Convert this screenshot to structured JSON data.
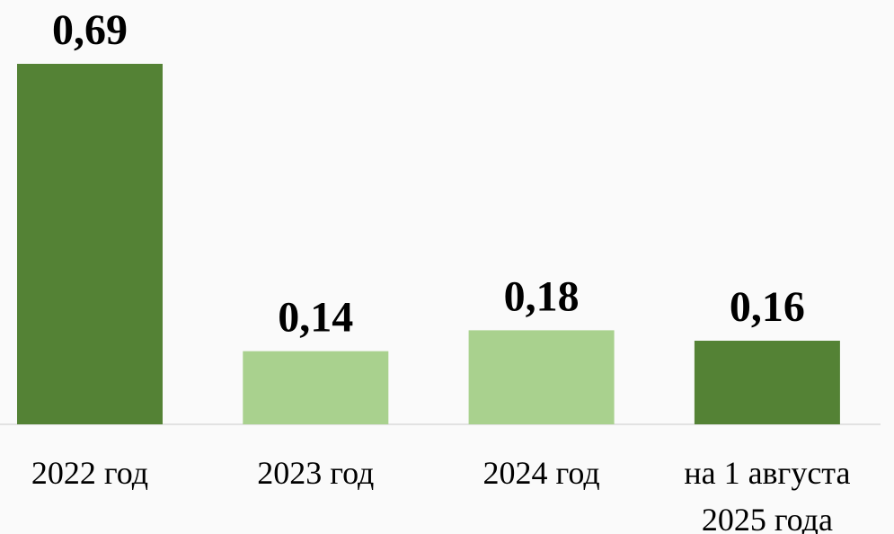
{
  "chart_data": {
    "type": "bar",
    "categories": [
      "2022 год",
      "2023 год",
      "2024 год",
      "на 1 августа 2025 года"
    ],
    "values": [
      0.69,
      0.14,
      0.18,
      0.16
    ],
    "value_labels": [
      "0,69",
      "0,14",
      "0,18",
      "0,16"
    ],
    "colors": [
      "#548235",
      "#a9d18e",
      "#a9d18e",
      "#548235"
    ]
  }
}
